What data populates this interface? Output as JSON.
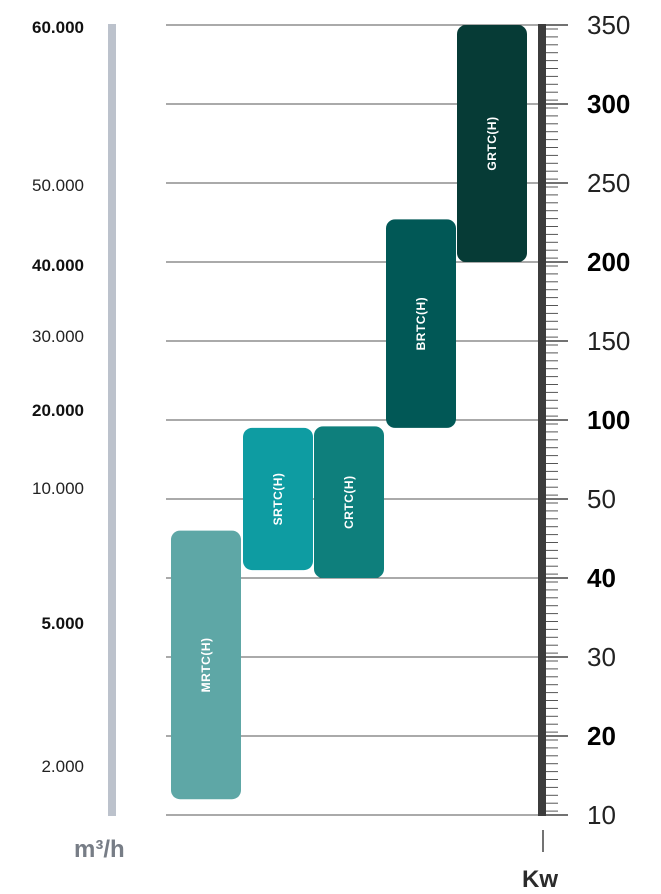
{
  "chart_data": {
    "type": "range-bar",
    "left_axis": {
      "unit": "m³/h",
      "ticks": [
        {
          "label": "60.000",
          "value": 60000,
          "bold": true
        },
        {
          "label": "50.000",
          "value": 50000,
          "bold": false
        },
        {
          "label": "40.000",
          "value": 40000,
          "bold": true
        },
        {
          "label": "30.000",
          "value": 30000,
          "bold": false
        },
        {
          "label": "20.000",
          "value": 20000,
          "bold": true
        },
        {
          "label": "10.000",
          "value": 10000,
          "bold": false
        },
        {
          "label": "5.000",
          "value": 5000,
          "bold": true
        },
        {
          "label": "2.000",
          "value": 2000,
          "bold": false
        }
      ]
    },
    "right_axis": {
      "unit": "Kw",
      "ticks": [
        {
          "label": "350",
          "value": 350,
          "bold": false
        },
        {
          "label": "300",
          "value": 300,
          "bold": true
        },
        {
          "label": "250",
          "value": 250,
          "bold": false
        },
        {
          "label": "200",
          "value": 200,
          "bold": true
        },
        {
          "label": "150",
          "value": 150,
          "bold": false
        },
        {
          "label": "100",
          "value": 100,
          "bold": true
        },
        {
          "label": "50",
          "value": 50,
          "bold": false
        },
        {
          "label": "40",
          "value": 40,
          "bold": true
        },
        {
          "label": "30",
          "value": 30,
          "bold": false
        },
        {
          "label": "20",
          "value": 20,
          "bold": true
        },
        {
          "label": "10",
          "value": 10,
          "bold": false
        }
      ]
    },
    "series": [
      {
        "name": "MRTC(H)",
        "kw_min": 12,
        "kw_max": 46,
        "color": "#5ea7a6"
      },
      {
        "name": "SRTC(H)",
        "kw_min": 41,
        "kw_max": 95,
        "color": "#0e9ca2"
      },
      {
        "name": "CRTC(H)",
        "kw_min": 40,
        "kw_max": 96,
        "color": "#0e7f7c"
      },
      {
        "name": "BRTC(H)",
        "kw_min": 95,
        "kw_max": 227,
        "color": "#015856"
      },
      {
        "name": "GRTC(H)",
        "kw_min": 200,
        "kw_max": 350,
        "color": "#063b36"
      }
    ],
    "colors": {
      "left_scale_bar": "#bcc2cc",
      "right_scale_bar": "#3c3c3c",
      "gridline": "#555555"
    }
  }
}
